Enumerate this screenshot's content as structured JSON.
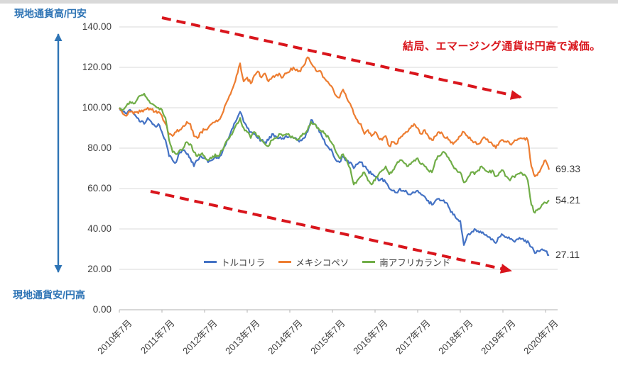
{
  "annotations": {
    "top_left": "現地通貨高/円安",
    "bottom_left": "現地通貨安/円高",
    "conclusion": "結局、エマージング通貨は円高で減価。"
  },
  "colors": {
    "turkish_lira": "#4472C4",
    "mexican_peso": "#ED7D31",
    "south_african_rand": "#70AD47",
    "annotation_red": "#D9151C",
    "annotation_blue": "#2E74B5",
    "axis_text": "#3F3F3F",
    "gridline": "#D9D9D9",
    "axis_line": "#BFBFBF"
  },
  "chart_data": {
    "type": "line",
    "title": "",
    "x_interval": "monthly",
    "x_start_label": "2010年7月",
    "x_end_label": "2020年7月",
    "x_tick_labels": [
      "2010年7月",
      "2011年7月",
      "2012年7月",
      "2013年7月",
      "2014年7月",
      "2015年7月",
      "2016年7月",
      "2017年7月",
      "2018年7月",
      "2019年7月",
      "2020年7月"
    ],
    "y_tick_labels": [
      "140.00",
      "120.00",
      "100.00",
      "80.00",
      "60.00",
      "40.00",
      "20.00",
      "0.00"
    ],
    "ylim": [
      0,
      140
    ],
    "grid": true,
    "legend_position": "bottom-center-inside",
    "series": [
      {
        "name": "トルコリラ",
        "color_key": "turkish_lira",
        "end_label": "27.11",
        "values": [
          100,
          98,
          97,
          99,
          97,
          95,
          93,
          92,
          95,
          93,
          91,
          92,
          88,
          84,
          76,
          74,
          73,
          78,
          79,
          77,
          75,
          71,
          74,
          76,
          75,
          73,
          74,
          76,
          75,
          78,
          82,
          86,
          90,
          94,
          98,
          93,
          90,
          88,
          87,
          85,
          84,
          83,
          84,
          87,
          86,
          85,
          85,
          86,
          86,
          85,
          84,
          84,
          85,
          88,
          94,
          92,
          90,
          86,
          82,
          80,
          78,
          74,
          73,
          76,
          74,
          73,
          70,
          72,
          73,
          71,
          69,
          67,
          66,
          64,
          65,
          63,
          60,
          59,
          58,
          60,
          59,
          58,
          57,
          58,
          59,
          57,
          56,
          54,
          52,
          54,
          55,
          54,
          53,
          50,
          47,
          45,
          44,
          32,
          37,
          38,
          40,
          39,
          38,
          37,
          36,
          35,
          33,
          36,
          37,
          36,
          35,
          34,
          35,
          35,
          34,
          34,
          31,
          28,
          29,
          30,
          29,
          27.11
        ]
      },
      {
        "name": "メキシコペソ",
        "color_key": "mexican_peso",
        "end_label": "69.33",
        "values": [
          100,
          97,
          96,
          98,
          97,
          98,
          98,
          99,
          100,
          99,
          98,
          98,
          96,
          92,
          87,
          86,
          88,
          89,
          91,
          93,
          92,
          86,
          85,
          88,
          89,
          90,
          92,
          93,
          94,
          97,
          102,
          106,
          110,
          116,
          122,
          113,
          115,
          112,
          116,
          118,
          115,
          117,
          113,
          115,
          116,
          117,
          115,
          117,
          118,
          120,
          119,
          118,
          121,
          125,
          122,
          120,
          118,
          117,
          114,
          112,
          110,
          106,
          105,
          109,
          105,
          102,
          97,
          94,
          92,
          87,
          89,
          86,
          88,
          85,
          84,
          86,
          81,
          83,
          82,
          85,
          87,
          88,
          90,
          92,
          90,
          87,
          89,
          86,
          84,
          86,
          88,
          87,
          85,
          84,
          82,
          84,
          86,
          88,
          86,
          84,
          83,
          82,
          84,
          85,
          83,
          82,
          80,
          83,
          84,
          83,
          82,
          83,
          84,
          85,
          85,
          84,
          71,
          66,
          68,
          71,
          74,
          69.33
        ]
      },
      {
        "name": "南アフリカランド",
        "color_key": "south_african_rand",
        "end_label": "54.21",
        "values": [
          100,
          99,
          101,
          103,
          102,
          104,
          106,
          107,
          104,
          102,
          101,
          100,
          99,
          95,
          84,
          78,
          77,
          79,
          80,
          83,
          82,
          78,
          76,
          77,
          76,
          74,
          75,
          77,
          76,
          79,
          83,
          85,
          88,
          92,
          95,
          90,
          88,
          85,
          88,
          86,
          84,
          82,
          81,
          84,
          85,
          87,
          86,
          87,
          86,
          85,
          84,
          86,
          87,
          89,
          93,
          92,
          90,
          88,
          87,
          85,
          82,
          78,
          75,
          77,
          74,
          70,
          62,
          64,
          66,
          68,
          64,
          62,
          64,
          67,
          69,
          71,
          67,
          69,
          72,
          74,
          73,
          71,
          72,
          74,
          75,
          72,
          71,
          69,
          68,
          74,
          76,
          78,
          77,
          74,
          71,
          69,
          68,
          63,
          65,
          68,
          67,
          69,
          71,
          69,
          68,
          69,
          66,
          68,
          69,
          66,
          64,
          66,
          67,
          68,
          67,
          64,
          52,
          48,
          50,
          52,
          53,
          54.21
        ]
      }
    ]
  }
}
